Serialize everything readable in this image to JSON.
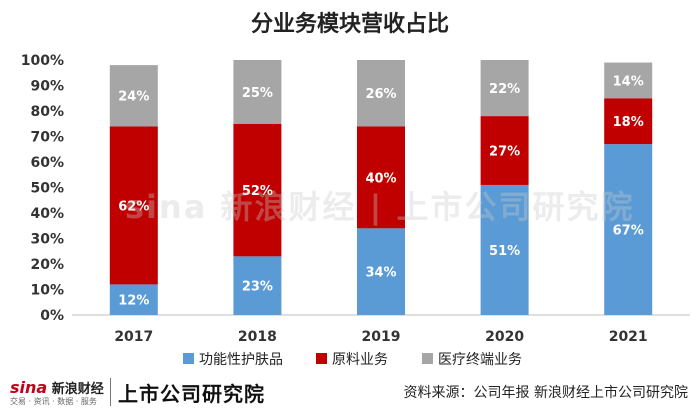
{
  "chart_data": {
    "type": "bar",
    "stacked": true,
    "title": "分业务模块营收占比",
    "categories": [
      "2017",
      "2018",
      "2019",
      "2020",
      "2021"
    ],
    "series": [
      {
        "name": "功能性护肤品",
        "color": "#5b9bd5",
        "values": [
          12,
          23,
          34,
          51,
          67
        ]
      },
      {
        "name": "原料业务",
        "color": "#c00000",
        "values": [
          62,
          52,
          40,
          27,
          18
        ]
      },
      {
        "name": "医疗终端业务",
        "color": "#a6a6a6",
        "values": [
          24,
          25,
          26,
          22,
          14
        ]
      }
    ],
    "value_suffix": "%",
    "ylim": [
      0,
      100
    ],
    "yticks": [
      "0%",
      "10%",
      "20%",
      "30%",
      "40%",
      "50%",
      "60%",
      "70%",
      "80%",
      "90%",
      "100%"
    ],
    "grid": false,
    "legend_position": "bottom"
  },
  "footer": {
    "brand_sina": "sina",
    "brand_sina_text": "新浪财经",
    "brand_sub": "交易 · 资讯 · 数据 · 服务",
    "brand_institute": "上市公司研究院",
    "source": "资料来源：公司年报 新浪财经上市公司研究院"
  },
  "watermark": "sina 新浪财经 | 上市公司研究院"
}
